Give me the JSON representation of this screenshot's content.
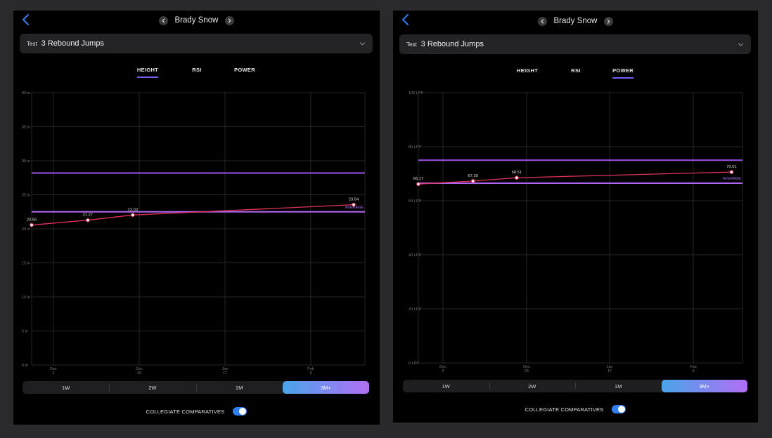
{
  "colors": {
    "average_line": "#b066f2",
    "comparative_line": "#9d55e8",
    "series": "#e0335a",
    "accent_blue": "#2f7ff5",
    "grid": "#262628"
  },
  "panels": [
    {
      "back_icon": "chevron-left-icon",
      "athlete_name": "Brady Snow",
      "test_label": "Test",
      "test_value": "3 Rebound Jumps",
      "tabs": [
        {
          "label": "HEIGHT",
          "active": true
        },
        {
          "label": "RSI",
          "active": false
        },
        {
          "label": "POWER",
          "active": false
        }
      ],
      "ranges": [
        {
          "label": "1W",
          "active": false
        },
        {
          "label": "2W",
          "active": false
        },
        {
          "label": "1M",
          "active": false
        },
        {
          "label": "3M+",
          "active": true
        }
      ],
      "toggle_label": "COLLEGIATE COMPARATIVES",
      "toggle_on": true,
      "chart_data": {
        "type": "line",
        "ylim": [
          0,
          40
        ],
        "ytick_labels": [
          "40 in",
          "35 in",
          "30 in",
          "25 in",
          "20 in",
          "15 in",
          "10 in",
          "5 in",
          "0 in"
        ],
        "xticks": [
          {
            "month": "Dec",
            "day": "2"
          },
          {
            "month": "Dec",
            "day": "25"
          },
          {
            "month": "Jan",
            "day": "17"
          },
          {
            "month": "Feb",
            "day": "9"
          }
        ],
        "xlim": [
          "2023-11-28",
          "2024-02-25"
        ],
        "series": [
          {
            "x": [
              "2023-11-28",
              "2023-12-13",
              "2023-12-25",
              "2024-02-22"
            ],
            "values": [
              20.56,
              21.27,
              22.03,
              23.54
            ]
          }
        ],
        "point_labels": [
          "20.56",
          "21.27",
          "22.03",
          "23.54"
        ],
        "average": {
          "label": "AVERAGE",
          "value": 22.5
        },
        "comparative_value": 28.2,
        "grid": true
      }
    },
    {
      "back_icon": "chevron-left-icon",
      "athlete_name": "Brady Snow",
      "test_label": "Test",
      "test_value": "3 Rebound Jumps",
      "tabs": [
        {
          "label": "HEIGHT",
          "active": false
        },
        {
          "label": "RSI",
          "active": false
        },
        {
          "label": "POWER",
          "active": true
        }
      ],
      "ranges": [
        {
          "label": "1W",
          "active": false
        },
        {
          "label": "2W",
          "active": false
        },
        {
          "label": "1M",
          "active": false
        },
        {
          "label": "3M+",
          "active": true
        }
      ],
      "toggle_label": "COLLEGIATE COMPARATIVES",
      "toggle_on": true,
      "chart_data": {
        "type": "line",
        "ylim": [
          0,
          100
        ],
        "ytick_labels": [
          "100 LPP",
          "80 LPP",
          "60 LPP",
          "40 LPP",
          "20 LPP",
          "0 LPP"
        ],
        "xticks": [
          {
            "month": "Dec",
            "day": "2"
          },
          {
            "month": "Dec",
            "day": "25"
          },
          {
            "month": "Jan",
            "day": "17"
          },
          {
            "month": "Feb",
            "day": "9"
          }
        ],
        "xlim": [
          "2023-11-28",
          "2024-02-25"
        ],
        "series": [
          {
            "x": [
              "2023-11-28",
              "2023-12-13",
              "2023-12-25",
              "2024-02-22"
            ],
            "values": [
              66.17,
              67.3,
              68.51,
              70.61
            ]
          }
        ],
        "point_labels": [
          "66.17",
          "67.30",
          "68.51",
          "70.61"
        ],
        "average": {
          "label": "AVERAGE",
          "value": 66.5
        },
        "comparative_value": 75,
        "grid": true
      }
    }
  ]
}
